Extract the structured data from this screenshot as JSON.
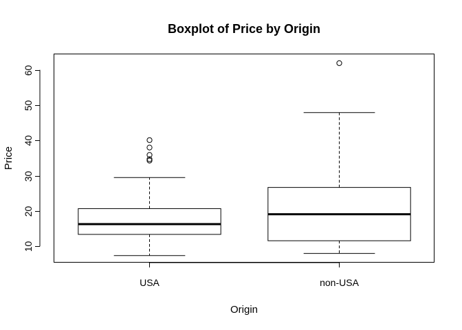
{
  "chart_data": {
    "type": "boxplot",
    "title": "Boxplot of Price by Origin",
    "xlabel": "Origin",
    "ylabel": "Price",
    "ylim": [
      5.5,
      64.5
    ],
    "yticks": [
      10,
      20,
      30,
      40,
      50,
      60
    ],
    "ytick_labels": [
      "10",
      "20",
      "30",
      "40",
      "50",
      "60"
    ],
    "grid": false,
    "legend": "none",
    "categories": [
      "USA",
      "non-USA"
    ],
    "boxes": [
      {
        "category": "USA",
        "whisker_low": 7.4,
        "q1": 13.4,
        "median": 16.3,
        "q3": 20.7,
        "whisker_high": 29.5,
        "outliers": [
          34.3,
          34.7,
          35.9,
          38.0,
          40.1
        ]
      },
      {
        "category": "non-USA",
        "whisker_low": 8.0,
        "q1": 11.6,
        "median": 19.1,
        "q3": 26.7,
        "whisker_high": 47.9,
        "outliers": [
          61.9
        ]
      }
    ]
  }
}
